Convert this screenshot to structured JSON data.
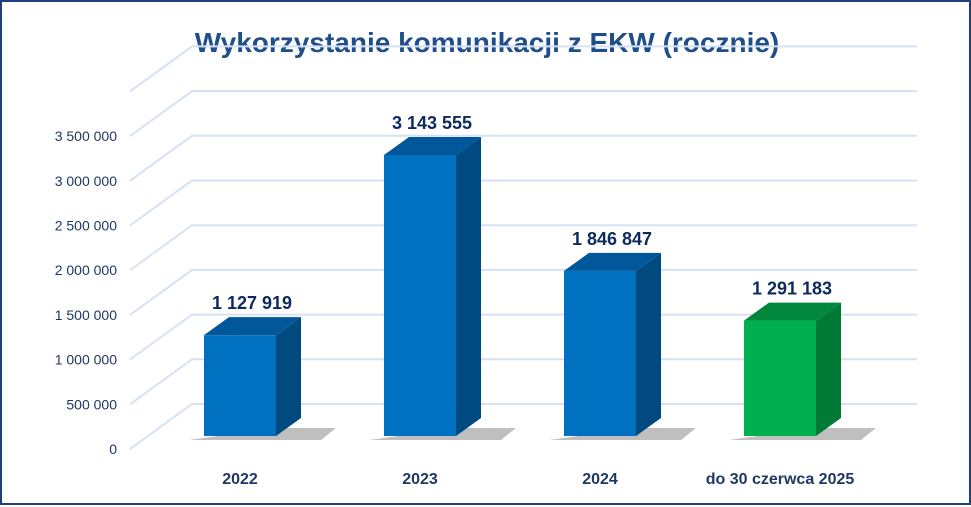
{
  "chart_data": {
    "type": "bar",
    "title": "Wykorzystanie komunikacji z EKW (rocznie)",
    "categories": [
      "2022",
      "2023",
      "2024",
      "do 30 czerwca 2025"
    ],
    "values": [
      1127919,
      3143555,
      1846847,
      1291183
    ],
    "data_labels": [
      "1 127 919",
      "3 143 555",
      "1 846 847",
      "1 291 183"
    ],
    "ylim": [
      0,
      4000000
    ],
    "yticks": [
      "0",
      "500 000",
      "1 000 000",
      "1 500 000",
      "2 000 000",
      "2 500 000",
      "3 000 000",
      "3 500 000"
    ],
    "grid": true,
    "style": "3d-column",
    "colors": {
      "default": "#0070c0",
      "highlight": "#00b050",
      "title": "#1f4e8c",
      "labels": "#0d2a5e",
      "grid": "#d6e2f3"
    },
    "highlight_index": 3
  }
}
